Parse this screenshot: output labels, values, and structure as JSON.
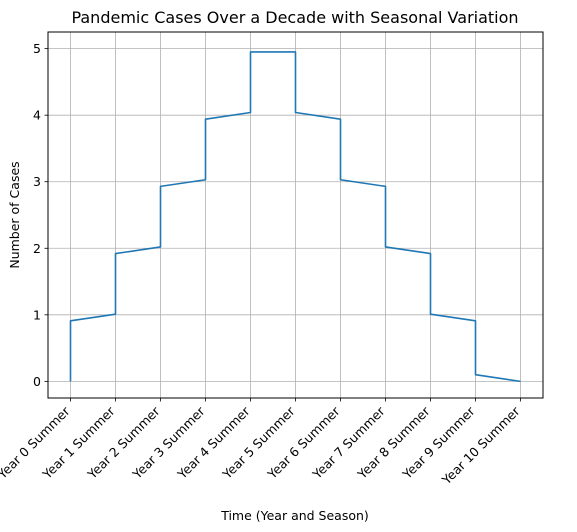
{
  "chart_data": {
    "type": "line",
    "title": "Pandemic Cases Over a Decade with Seasonal Variation",
    "xlabel": "Time (Year and Season)",
    "ylabel": "Number of Cases",
    "xticks": [
      "Year 0 Summer",
      "Year 1 Summer",
      "Year 2 Summer",
      "Year 3 Summer",
      "Year 4 Summer",
      "Year 5 Summer",
      "Year 6 Summer",
      "Year 7 Summer",
      "Year 8 Summer",
      "Year 9 Summer",
      "Year 10 Summer"
    ],
    "yticks": [
      0,
      1,
      2,
      3,
      4,
      5
    ],
    "xlim": [
      -0.5,
      10.5
    ],
    "ylim": [
      -0.25,
      5.25
    ],
    "grid": true,
    "line_color": "#1f77b4",
    "series": [
      {
        "x": [
          0,
          0,
          1,
          1,
          2,
          2,
          3,
          3,
          4,
          4,
          5,
          5,
          6,
          6,
          7,
          7,
          8,
          8,
          9,
          9,
          10
        ],
        "y": [
          0,
          0.91,
          1.01,
          1.92,
          2.02,
          2.93,
          3.03,
          3.94,
          4.04,
          4.95,
          4.95,
          4.04,
          3.94,
          3.03,
          2.93,
          2.02,
          1.92,
          1.01,
          0.91,
          0.1,
          0
        ]
      }
    ]
  }
}
